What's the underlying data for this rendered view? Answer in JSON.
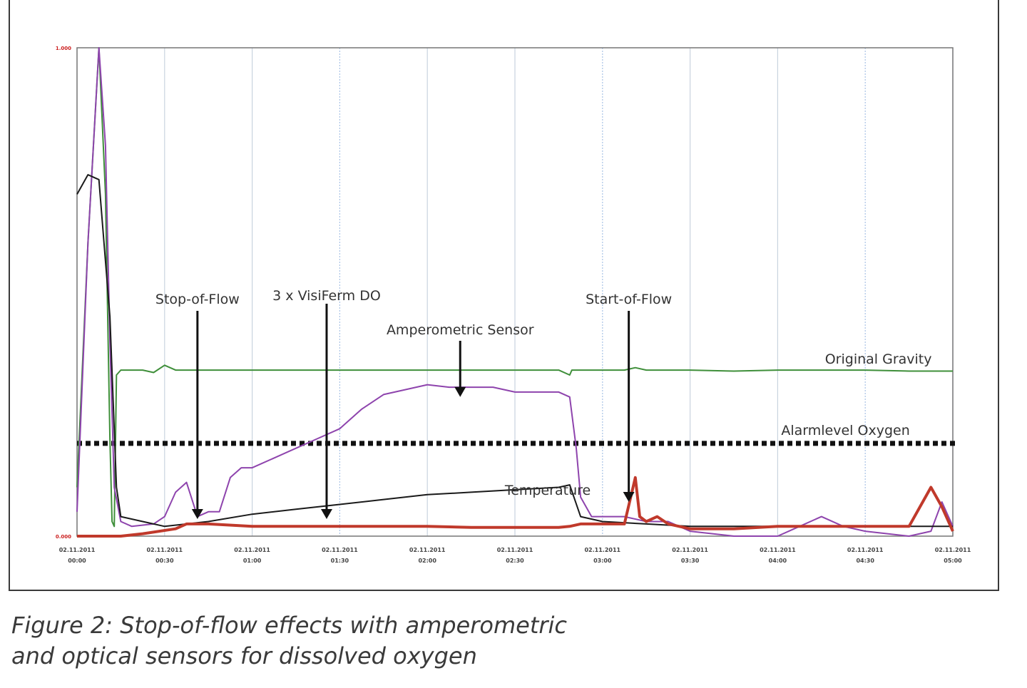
{
  "caption": {
    "line1": "Figure 2: Stop-of-flow effects with amperometric",
    "line2": "and optical sensors for dissolved oxygen"
  },
  "chart_data": {
    "type": "line",
    "title": "",
    "xlabel": "",
    "ylabel": "",
    "grid": "vertical",
    "y_tick_top": "1.000",
    "y_tick_bottom": "0.000",
    "ylim": [
      0,
      100
    ],
    "x_tick_labels": [
      {
        "date": "02.11.2011",
        "time": "00:00"
      },
      {
        "date": "02.11.2011",
        "time": "00:30"
      },
      {
        "date": "02.11.2011",
        "time": "01:00"
      },
      {
        "date": "02.11.2011",
        "time": "01:30"
      },
      {
        "date": "02.11.2011",
        "time": "02:00"
      },
      {
        "date": "02.11.2011",
        "time": "02:30"
      },
      {
        "date": "02.11.2011",
        "time": "03:00"
      },
      {
        "date": "02.11.2011",
        "time": "03:30"
      },
      {
        "date": "02.11.2011",
        "time": "04:00"
      },
      {
        "date": "02.11.2011",
        "time": "04:30"
      },
      {
        "date": "02.11.2011",
        "time": "05:00"
      }
    ],
    "series": [
      {
        "name": "Original Gravity",
        "color": "#3f8f3a",
        "x": [
          0,
          5,
          10,
          13,
          15,
          16,
          17,
          18,
          20,
          25,
          30,
          35,
          40,
          45,
          60,
          80,
          100,
          120,
          140,
          160,
          180,
          200,
          220,
          225,
          226,
          230,
          240,
          250,
          255,
          260,
          280,
          300,
          320,
          340,
          360,
          380,
          400
        ],
        "y": [
          10,
          60,
          100,
          70,
          20,
          3,
          2,
          33,
          34,
          34,
          34,
          33.5,
          35,
          34,
          34,
          34,
          34,
          34,
          34,
          34,
          34,
          34,
          34,
          33,
          34,
          34,
          34,
          34,
          34.5,
          34,
          34,
          33.8,
          34,
          34,
          34,
          33.8,
          33.8
        ]
      },
      {
        "name": "Amperometric Sensor",
        "color": "#8e44ad",
        "x": [
          0,
          5,
          10,
          13,
          15,
          17,
          20,
          25,
          35,
          40,
          45,
          50,
          55,
          60,
          65,
          70,
          75,
          80,
          90,
          100,
          110,
          120,
          130,
          140,
          150,
          160,
          170,
          180,
          190,
          200,
          210,
          220,
          225,
          228,
          230,
          235,
          240,
          250,
          260,
          270,
          275,
          280,
          300,
          320,
          330,
          340,
          350,
          360,
          380,
          390,
          395,
          400
        ],
        "y": [
          5,
          60,
          100,
          80,
          40,
          10,
          3,
          2,
          2.5,
          4,
          9,
          11,
          4,
          5,
          5,
          12,
          14,
          14,
          16,
          18,
          20,
          22,
          26,
          29,
          30,
          31,
          30.5,
          30.5,
          30.5,
          29.5,
          29.5,
          29.5,
          28.5,
          18,
          8,
          4,
          4,
          4,
          3,
          3,
          2,
          1,
          0,
          0,
          2,
          4,
          2,
          1,
          0,
          1,
          7,
          2
        ]
      },
      {
        "name": "Temperature",
        "color": "#1a1a1a",
        "x": [
          0,
          5,
          10,
          15,
          18,
          20,
          30,
          40,
          50,
          60,
          80,
          100,
          120,
          140,
          160,
          180,
          200,
          220,
          225,
          230,
          240,
          260,
          280,
          300,
          320,
          340,
          360,
          380,
          400
        ],
        "y": [
          70,
          74,
          73,
          45,
          10,
          4,
          3,
          2,
          2.5,
          3,
          4.5,
          5.5,
          6.5,
          7.5,
          8.5,
          9,
          9.5,
          10,
          10.5,
          4,
          3,
          2.5,
          2,
          2,
          2,
          2,
          2,
          2,
          2
        ]
      },
      {
        "name": "3 x VisiFerm DO",
        "color": "#c0392b",
        "x": [
          0,
          10,
          15,
          20,
          30,
          45,
          50,
          60,
          80,
          100,
          120,
          140,
          160,
          180,
          200,
          220,
          225,
          230,
          240,
          250,
          255,
          257,
          260,
          265,
          270,
          280,
          300,
          320,
          340,
          360,
          380,
          390,
          395,
          400
        ],
        "y": [
          0,
          0,
          0,
          0,
          0.5,
          1.5,
          2.5,
          2.5,
          2,
          2,
          2,
          2,
          2,
          1.8,
          1.8,
          1.8,
          2,
          2.5,
          2.5,
          2.5,
          12,
          4,
          3,
          4,
          2.5,
          1.5,
          1.5,
          2,
          2,
          2,
          2,
          10,
          6,
          1
        ]
      }
    ],
    "reference_line": {
      "name": "Alarmlevel Oxygen",
      "style": "dotted",
      "y": 19
    },
    "annotations": [
      {
        "text": "Stop-of-Flow",
        "x": 55
      },
      {
        "text": "3 x VisiFerm DO",
        "x": 114
      },
      {
        "text": "Amperometric Sensor",
        "x": 175
      },
      {
        "text": "Start-of-Flow",
        "x": 252
      }
    ],
    "labels_on_lines": {
      "original_gravity": "Original Gravity",
      "alarm": "Alarmlevel Oxygen",
      "temperature": "Temperature"
    }
  }
}
